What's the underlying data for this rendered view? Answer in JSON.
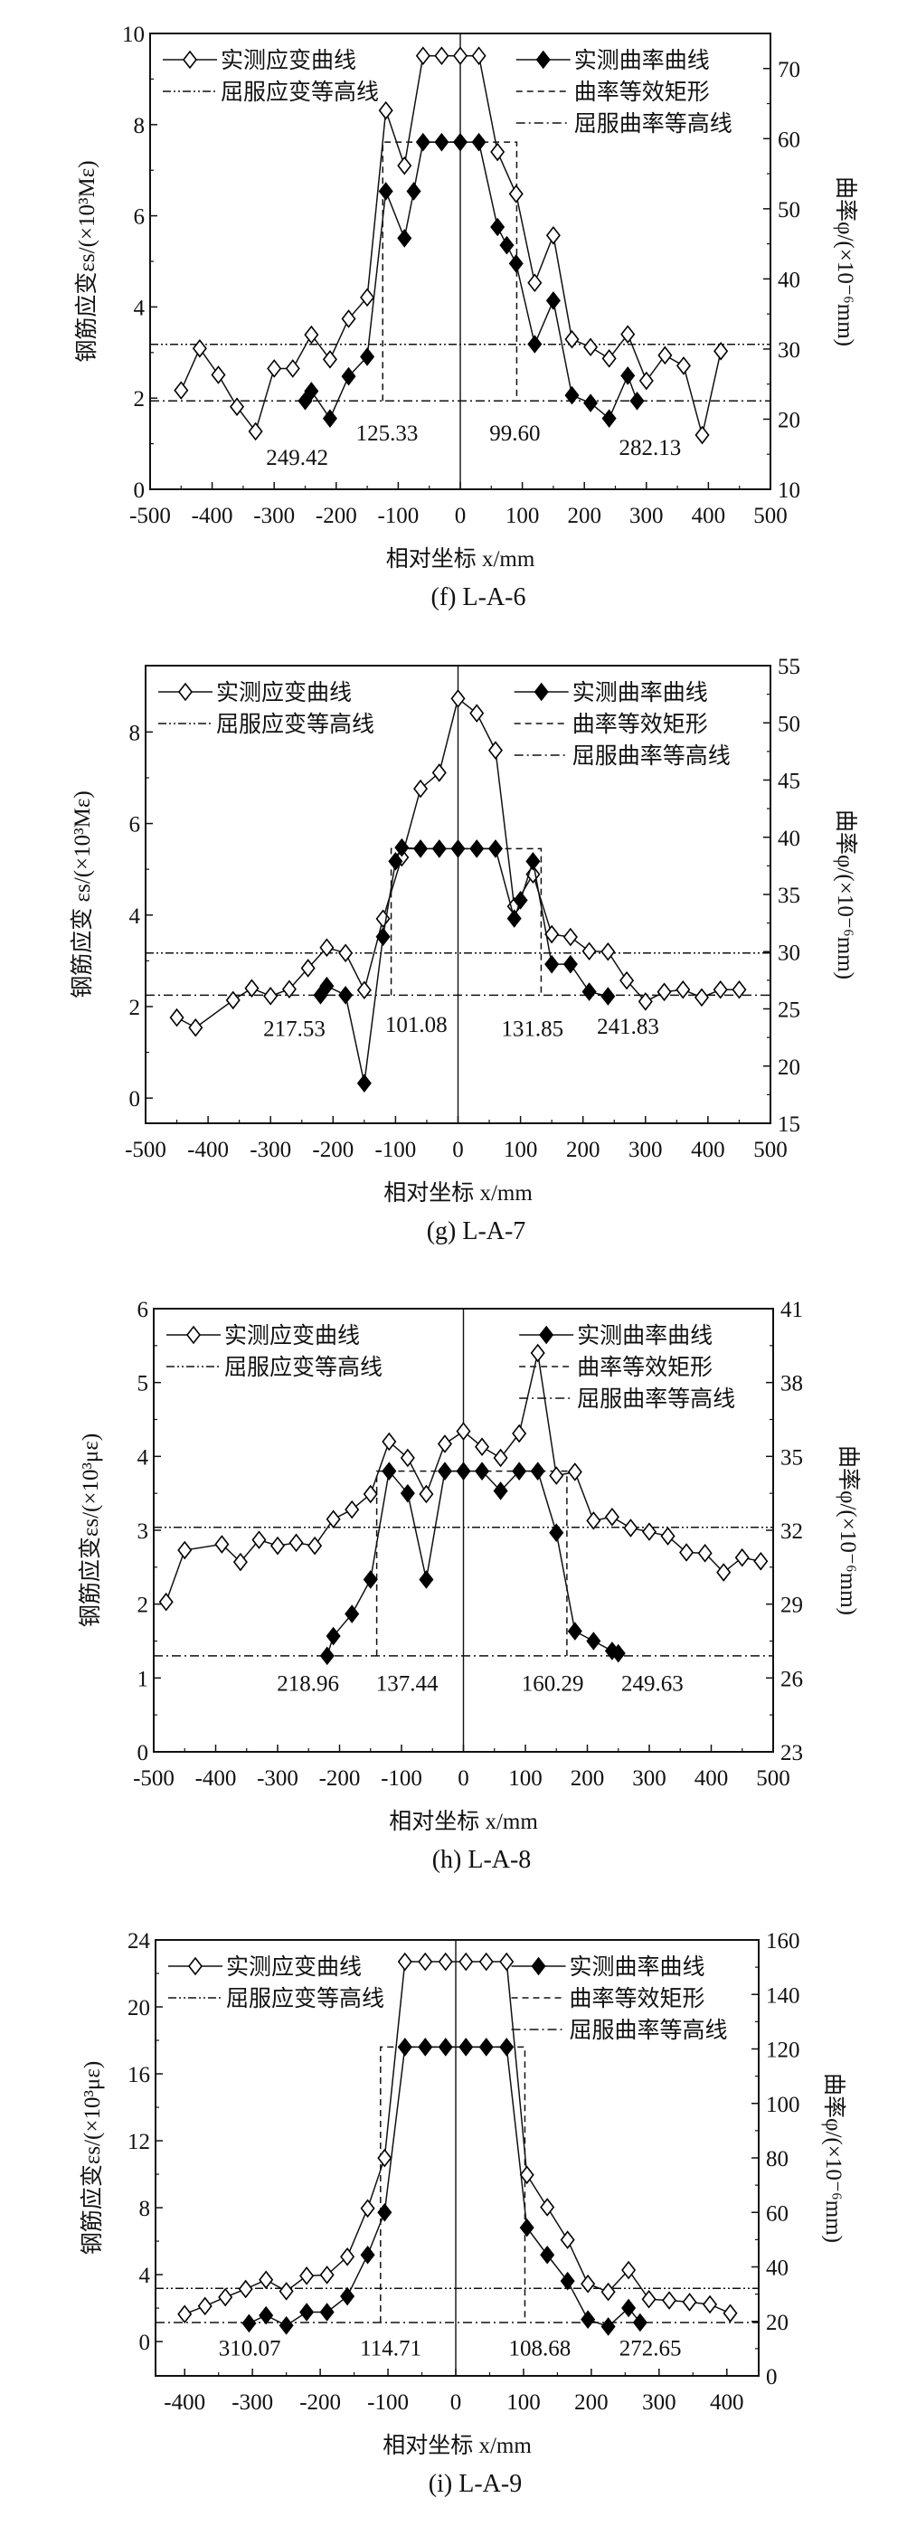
{
  "legend": {
    "strain": "实测应变曲线",
    "curvature": "实测曲率曲线",
    "yield_strain": "屈服应变等高线",
    "rect": "曲率等效矩形",
    "yield_curvature": "屈服曲率等高线"
  },
  "chart_data": [
    {
      "type": "line",
      "caption": "(f) L-A-6",
      "xlabel": "相对坐标 x/mm",
      "ylabel": "钢筋应变εs/(×10³Mε)",
      "y2label": "曲率φ/(×10⁻⁶mm)",
      "xlim": [
        -500,
        500
      ],
      "xticks": [
        -500,
        -400,
        -300,
        -200,
        -100,
        0,
        100,
        200,
        300,
        400,
        500
      ],
      "ylim": [
        0,
        10
      ],
      "yticks": [
        0,
        2,
        4,
        6,
        8,
        10
      ],
      "y2lim": [
        10,
        75
      ],
      "y2ticks": [
        10,
        20,
        30,
        40,
        50,
        60,
        70
      ],
      "series": [
        {
          "name": "实测应变曲线",
          "axis": "left",
          "marker": "open-diamond",
          "x": [
            -450,
            -420,
            -390,
            -360,
            -330,
            -300,
            -270,
            -240,
            -210,
            -180,
            -150,
            -120,
            -90,
            -60,
            -30,
            0,
            30,
            60,
            90,
            120,
            150,
            180,
            210,
            240,
            270,
            300,
            330,
            360,
            390,
            420
          ],
          "y": [
            2.17,
            3.09,
            2.51,
            1.81,
            1.27,
            2.65,
            2.65,
            3.39,
            2.85,
            3.74,
            4.21,
            8.31,
            7.1,
            9.51,
            9.51,
            9.51,
            9.51,
            7.4,
            6.48,
            4.53,
            5.57,
            3.29,
            3.12,
            2.87,
            3.4,
            2.38,
            2.94,
            2.71,
            1.19,
            3.03
          ]
        },
        {
          "name": "实测曲率曲线",
          "axis": "right",
          "marker": "filled-diamond",
          "x": [
            -250,
            -240,
            -210,
            -180,
            -150,
            -120,
            -90,
            -75,
            -60,
            -30,
            0,
            30,
            60,
            75,
            90,
            120,
            150,
            180,
            210,
            240,
            270,
            285
          ],
          "y": [
            22.6,
            24.0,
            20.1,
            26.1,
            28.9,
            52.5,
            45.8,
            52.5,
            59.5,
            59.5,
            59.5,
            59.5,
            47.4,
            44.8,
            42.2,
            30.7,
            36.9,
            23.4,
            22.3,
            20.1,
            26.2,
            22.6
          ]
        }
      ],
      "yield_strain": 3.18,
      "yield_curvature": 22.6,
      "equiv_rect": {
        "x": [
          -125,
          91
        ],
        "curvature": 59.5
      },
      "annotations": [
        "249.42",
        "125.33",
        "99.60",
        "282.13"
      ]
    },
    {
      "type": "line",
      "caption": "(g) L-A-7",
      "xlabel": "相对坐标 x/mm",
      "ylabel": "钢筋应变 εs/(×10³Mε)",
      "y2label": "曲率φ/(×10⁻⁶mm)",
      "xlim": [
        -500,
        500
      ],
      "xticks": [
        -500,
        -400,
        -300,
        -200,
        -100,
        0,
        100,
        200,
        300,
        400,
        500
      ],
      "ylim": [
        -0.55,
        9.45
      ],
      "yticks": [
        0,
        2,
        4,
        6,
        8
      ],
      "y2lim": [
        15,
        55
      ],
      "y2ticks": [
        15,
        20,
        25,
        30,
        35,
        40,
        45,
        50,
        55
      ],
      "series": [
        {
          "name": "实测应变曲线",
          "axis": "left",
          "marker": "open-diamond",
          "x": [
            -450,
            -420,
            -360,
            -330,
            -300,
            -270,
            -240,
            -210,
            -180,
            -150,
            -120,
            -90,
            -60,
            -30,
            0,
            30,
            60,
            90,
            120,
            150,
            180,
            210,
            240,
            270,
            300,
            330,
            360,
            390,
            420,
            450
          ],
          "y": [
            1.76,
            1.54,
            2.14,
            2.4,
            2.23,
            2.38,
            2.84,
            3.29,
            3.17,
            2.36,
            3.92,
            5.26,
            6.76,
            7.11,
            8.73,
            8.41,
            7.6,
            4.19,
            4.89,
            3.58,
            3.52,
            3.21,
            3.2,
            2.57,
            2.11,
            2.32,
            2.37,
            2.2,
            2.37,
            2.37
          ]
        },
        {
          "name": "实测曲率曲线",
          "axis": "right",
          "marker": "filled-diamond",
          "x": [
            -220,
            -210,
            -180,
            -150,
            -120,
            -100,
            -90,
            -60,
            -30,
            0,
            30,
            60,
            90,
            100,
            120,
            150,
            180,
            210,
            240
          ],
          "y": [
            26.2,
            27.0,
            26.2,
            18.5,
            31.3,
            37.9,
            39.1,
            39.0,
            39.0,
            39.0,
            39.0,
            39.0,
            32.9,
            34.5,
            37.9,
            28.9,
            28.9,
            26.5,
            26.1
          ]
        }
      ],
      "yield_strain": 3.17,
      "yield_curvature": 26.2,
      "equiv_rect": {
        "x": [
          -107,
          133
        ],
        "curvature": 39.0
      },
      "annotations": [
        "217.53",
        "101.08",
        "131.85",
        "241.83"
      ]
    },
    {
      "type": "line",
      "caption": "(h) L-A-8",
      "xlabel": "相对坐标 x/mm",
      "ylabel": "钢筋应变εs/(×10³με)",
      "y2label": "曲率φ/(×10⁻⁶mm)",
      "xlim": [
        -500,
        500
      ],
      "xticks": [
        -500,
        -400,
        -300,
        -200,
        -100,
        0,
        100,
        200,
        300,
        400,
        500
      ],
      "ylim": [
        0,
        6
      ],
      "yticks": [
        0,
        1,
        2,
        3,
        4,
        5,
        6
      ],
      "y2lim": [
        23,
        41
      ],
      "y2ticks": [
        23,
        26,
        29,
        32,
        35,
        38,
        41
      ],
      "series": [
        {
          "name": "实测应变曲线",
          "axis": "left",
          "marker": "open-diamond",
          "x": [
            -480,
            -450,
            -390,
            -360,
            -330,
            -300,
            -270,
            -240,
            -210,
            -180,
            -150,
            -120,
            -90,
            -60,
            -30,
            0,
            30,
            60,
            90,
            120,
            150,
            180,
            210,
            240,
            270,
            300,
            330,
            360,
            390,
            420,
            450,
            480
          ],
          "y": [
            2.03,
            2.73,
            2.81,
            2.57,
            2.87,
            2.79,
            2.83,
            2.79,
            3.15,
            3.28,
            3.49,
            4.2,
            3.98,
            3.49,
            4.17,
            4.34,
            4.13,
            3.98,
            4.31,
            5.4,
            3.74,
            3.79,
            3.13,
            3.18,
            3.03,
            2.98,
            2.92,
            2.7,
            2.69,
            2.43,
            2.63,
            2.58
          ]
        },
        {
          "name": "实测曲率曲线",
          "axis": "right",
          "marker": "filled-diamond",
          "x": [
            -220,
            -210,
            -180,
            -150,
            -120,
            -90,
            -60,
            -30,
            0,
            30,
            60,
            90,
            120,
            150,
            180,
            210,
            240,
            250
          ],
          "y": [
            26.9,
            27.7,
            28.6,
            30.0,
            34.4,
            33.5,
            30.0,
            34.4,
            34.4,
            34.4,
            33.6,
            34.4,
            34.4,
            31.9,
            27.9,
            27.5,
            27.1,
            27.0
          ]
        }
      ],
      "yield_strain": 3.04,
      "yield_curvature": 26.9,
      "equiv_rect": {
        "x": [
          -140,
          167
        ],
        "curvature": 34.4
      },
      "annotations": [
        "218.96",
        "137.44",
        "160.29",
        "249.63"
      ]
    },
    {
      "type": "line",
      "caption": "(i) L-A-9",
      "xlabel": "相对坐标 x/mm",
      "ylabel": "钢筋应变εs/(×10³με)",
      "y2label": "曲率φ/(×10⁻⁶mm)",
      "xlim": [
        -443,
        447
      ],
      "xticks": [
        -400,
        -300,
        -200,
        -100,
        0,
        100,
        200,
        300,
        400
      ],
      "ylim": [
        -2.05,
        24
      ],
      "yticks": [
        0,
        4,
        8,
        12,
        16,
        20,
        24
      ],
      "y2lim": [
        0,
        160
      ],
      "y2ticks": [
        0,
        20,
        40,
        60,
        80,
        100,
        120,
        140,
        160
      ],
      "series": [
        {
          "name": "实测应变曲线",
          "axis": "left",
          "marker": "open-diamond",
          "x": [
            -400,
            -370,
            -340,
            -310,
            -280,
            -250,
            -220,
            -190,
            -160,
            -130,
            -105,
            -75,
            -45,
            -15,
            15,
            45,
            75,
            105,
            135,
            165,
            195,
            225,
            255,
            285,
            315,
            345,
            375,
            405
          ],
          "y": [
            1.64,
            2.12,
            2.65,
            3.14,
            3.69,
            3.01,
            3.93,
            3.98,
            5.07,
            7.96,
            10.97,
            22.7,
            22.7,
            22.7,
            22.7,
            22.7,
            22.7,
            9.96,
            8.03,
            6.08,
            3.45,
            2.97,
            4.27,
            2.53,
            2.46,
            2.36,
            2.22,
            1.69
          ]
        },
        {
          "name": "实测曲率曲线",
          "axis": "right",
          "marker": "filled-diamond",
          "x": [
            -305,
            -280,
            -250,
            -220,
            -190,
            -160,
            -130,
            -105,
            -75,
            -45,
            -15,
            15,
            45,
            75,
            105,
            135,
            165,
            195,
            225,
            255,
            272
          ],
          "y": [
            19.3,
            22.2,
            18.5,
            23.4,
            23.4,
            29.2,
            44.4,
            60.0,
            120.7,
            120.7,
            120.7,
            120.7,
            120.7,
            120.7,
            54.4,
            44.4,
            34.8,
            20.7,
            18.1,
            24.9,
            19.6
          ]
        }
      ],
      "yield_strain": 3.18,
      "yield_curvature": 19.6,
      "equiv_rect": {
        "x": [
          -111,
          102
        ],
        "curvature": 120.7
      },
      "annotations": [
        "310.07",
        "114.71",
        "108.68",
        "272.65"
      ]
    }
  ]
}
